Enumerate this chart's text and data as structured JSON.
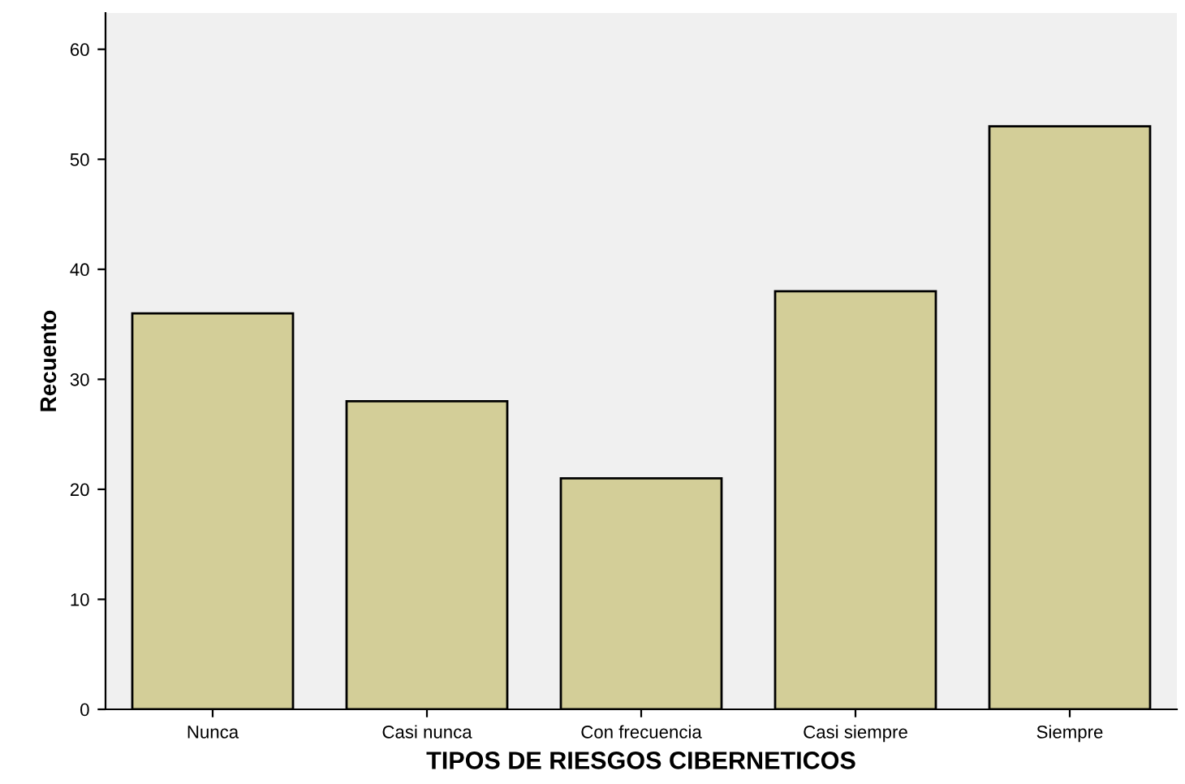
{
  "chart_data": {
    "type": "bar",
    "xlabel": "TIPOS DE RIESGOS CIBERNETICOS",
    "ylabel": "Recuento",
    "categories": [
      "Nunca",
      "Casi nunca",
      "Con frecuencia",
      "Casi siempre",
      "Siempre"
    ],
    "values": [
      36,
      28,
      21,
      38,
      53
    ],
    "color": "#d3ce98",
    "ylim": [
      0,
      63.3
    ],
    "yticks": [
      0,
      10,
      20,
      30,
      40,
      50,
      60
    ],
    "grid": false,
    "legend": false
  }
}
